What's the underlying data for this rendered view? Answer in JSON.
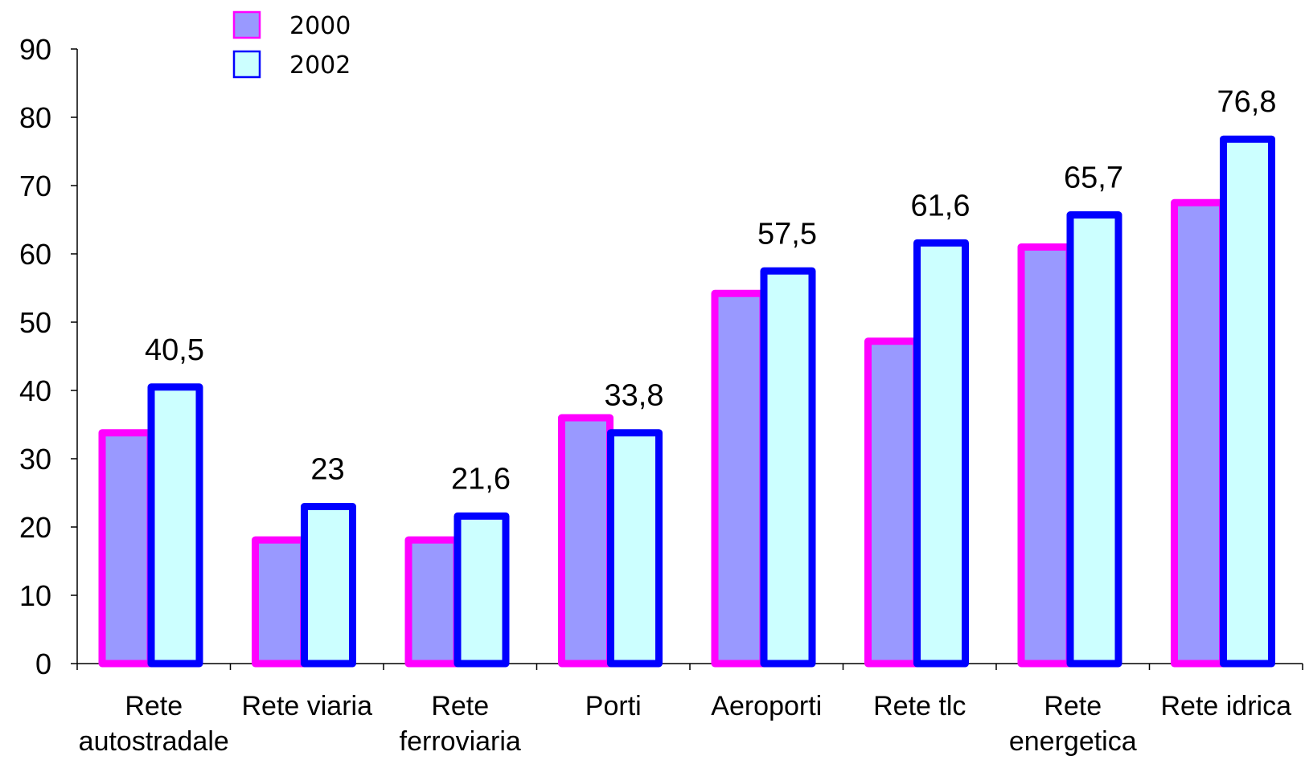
{
  "chart_data": {
    "type": "bar",
    "categories": [
      [
        "Rete",
        "autostradale"
      ],
      [
        "Rete viaria"
      ],
      [
        "Rete",
        "ferroviaria"
      ],
      [
        "Porti"
      ],
      [
        "Aeroporti"
      ],
      [
        "Rete tlc"
      ],
      [
        "Rete",
        "energetica"
      ],
      [
        "Rete idrica"
      ]
    ],
    "series": [
      {
        "name": "2000",
        "values": [
          33.8,
          18.1,
          18.1,
          36.0,
          54.2,
          47.2,
          61.0,
          67.5
        ],
        "fill": "#9999ff",
        "stroke": "#ff00ff"
      },
      {
        "name": "2002",
        "values": [
          40.5,
          23,
          21.6,
          33.8,
          57.5,
          61.6,
          65.7,
          76.8
        ],
        "fill": "#ccffff",
        "stroke": "#0000ff"
      }
    ],
    "data_labels": [
      "40,5",
      "23",
      "21,6",
      "33,8",
      "57,5",
      "61,6",
      "65,7",
      "76,8"
    ],
    "y_ticks": [
      "0",
      "10",
      "20",
      "30",
      "40",
      "50",
      "60",
      "70",
      "80",
      "90"
    ],
    "ylim": [
      0,
      90
    ],
    "legend_position": "top-left",
    "grid": false
  }
}
